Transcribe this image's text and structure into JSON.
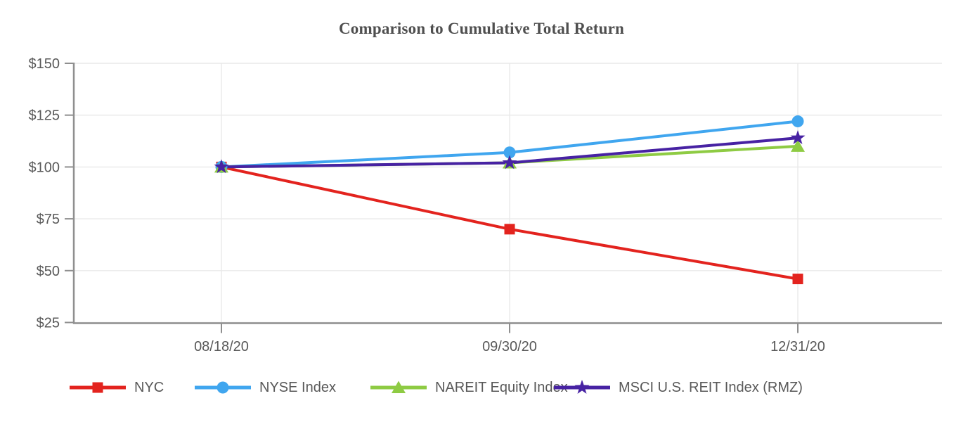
{
  "chart_data": {
    "type": "line",
    "title": "Comparison to Cumulative Total Return",
    "x_labels": [
      "08/18/20",
      "09/30/20",
      "12/31/20"
    ],
    "y_ticks": [
      "$150",
      "$125",
      "$100",
      "$75",
      "$50",
      "$25"
    ],
    "y_tick_values": [
      150,
      125,
      100,
      75,
      50,
      25
    ],
    "ylim": [
      25,
      150
    ],
    "grid": true,
    "legend_position": "bottom",
    "series": [
      {
        "name": "NYC",
        "color": "#e3231e",
        "marker": "square",
        "values": [
          100,
          70,
          46
        ]
      },
      {
        "name": "NYSE Index",
        "color": "#40a6ef",
        "marker": "circle",
        "values": [
          100,
          107,
          122
        ]
      },
      {
        "name": "NAREIT Equity Index",
        "color": "#8ecb43",
        "marker": "triangle",
        "values": [
          100,
          102,
          110
        ]
      },
      {
        "name": "MSCI U.S. REIT Index (RMZ)",
        "color": "#4722a3",
        "marker": "star",
        "values": [
          100,
          102,
          114
        ]
      }
    ],
    "colors": {
      "grid": "#e9e9e9",
      "axis": "#8f8f8f",
      "label_text": "#595959",
      "title_text": "#4f4f4f"
    }
  }
}
